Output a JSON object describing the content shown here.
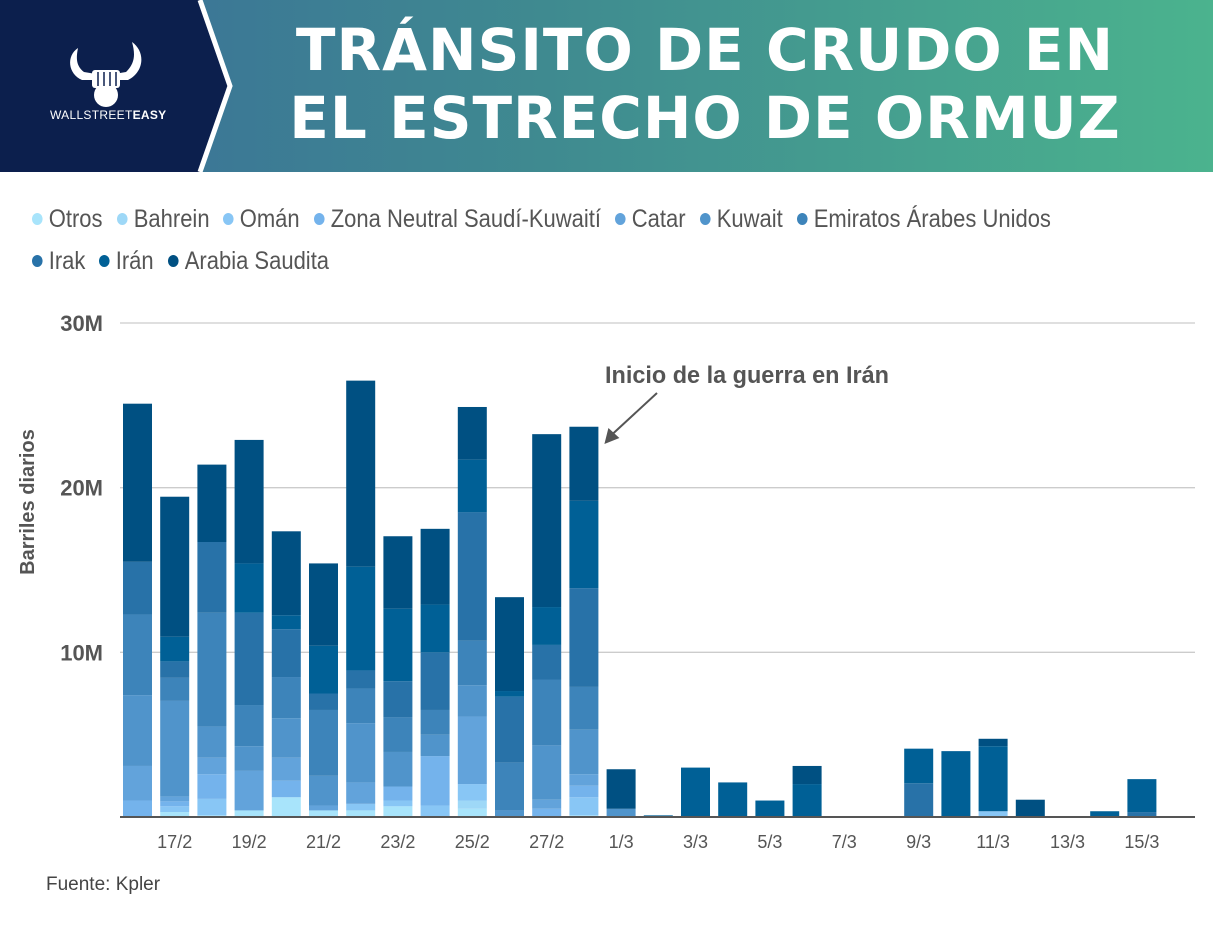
{
  "header": {
    "brand_light": "WALLSTREET",
    "brand_bold": "EASY",
    "title_line1": "TRÁNSITO DE CRUDO EN",
    "title_line2": "EL ESTRECHO DE ORMUZ",
    "logo_icon": "bull-fist-icon"
  },
  "source": "Fuente: Kpler",
  "chart_data": {
    "type": "bar",
    "stacked": true,
    "title": "TRÁNSITO DE CRUDO EN EL ESTRECHO DE ORMUZ",
    "xlabel": "",
    "ylabel": "Barriles diarios",
    "ylim": [
      0,
      30000000
    ],
    "yticks": [
      10000000,
      20000000,
      30000000
    ],
    "ytick_labels": [
      "10M",
      "20M",
      "30M"
    ],
    "grid": true,
    "legend_position": "top",
    "annotation": {
      "text": "Inicio de la guerra en Irán",
      "target_category": "28/2"
    },
    "categories": [
      "16/2",
      "17/2",
      "18/2",
      "19/2",
      "20/2",
      "21/2",
      "22/2",
      "23/2",
      "24/2",
      "25/2",
      "26/2",
      "27/2",
      "28/2",
      "1/3",
      "2/3",
      "3/3",
      "4/3",
      "5/3",
      "6/3",
      "7/3",
      "8/3",
      "9/3",
      "10/3",
      "11/3",
      "12/3",
      "13/3",
      "14/3",
      "15/3"
    ],
    "xtick_labels": [
      "17/2",
      "19/2",
      "21/2",
      "23/2",
      "25/2",
      "27/2",
      "1/3",
      "3/3",
      "5/3",
      "7/3",
      "9/3",
      "11/3",
      "13/3",
      "15/3"
    ],
    "units": "millones de barriles diarios",
    "series": [
      {
        "name": "Otros",
        "color": "#a8e4fb",
        "values": [
          0,
          0.3,
          0.1,
          0.4,
          1.2,
          0.4,
          0.4,
          0.65,
          0,
          0.5,
          0,
          0,
          0.1,
          0,
          0,
          0,
          0,
          0,
          0,
          0,
          0,
          0,
          0,
          0,
          0,
          0,
          0,
          0
        ]
      },
      {
        "name": "Bahrein",
        "color": "#9ed8f7",
        "values": [
          0,
          0,
          0,
          0,
          0,
          0,
          0,
          0,
          0,
          0.5,
          0,
          0,
          0,
          0,
          0,
          0,
          0,
          0,
          0,
          0,
          0,
          0,
          0,
          0,
          0,
          0,
          0,
          0
        ]
      },
      {
        "name": "Omán",
        "color": "#88c6f5",
        "values": [
          0,
          0.35,
          1.0,
          0,
          0,
          0,
          0.4,
          0.35,
          0.7,
          1.0,
          0,
          0,
          1.1,
          0,
          0,
          0,
          0,
          0,
          0,
          0,
          0,
          0,
          0,
          0.35,
          0,
          0,
          0,
          0
        ]
      },
      {
        "name": "Zona Neutral Saudí-Kuwaití",
        "color": "#74b3ec",
        "values": [
          1.0,
          0.3,
          1.5,
          0,
          1.0,
          0,
          0,
          0.85,
          3.0,
          0,
          0,
          0.5,
          0.7,
          0,
          0,
          0,
          0,
          0,
          0,
          0,
          0,
          0,
          0,
          0,
          0,
          0,
          0,
          0
        ]
      },
      {
        "name": "Catar",
        "color": "#62a3db",
        "values": [
          2.1,
          0.3,
          1.0,
          2.4,
          1.4,
          0.3,
          1.3,
          0,
          0,
          4.1,
          0,
          0.55,
          0.7,
          0,
          0,
          0,
          0,
          0,
          0,
          0,
          0,
          0,
          0,
          0,
          0,
          0,
          0,
          0
        ]
      },
      {
        "name": "Kuwait",
        "color": "#5094cb",
        "values": [
          4.3,
          5.8,
          1.9,
          1.5,
          2.4,
          1.8,
          3.6,
          2.1,
          1.3,
          1.9,
          0.4,
          3.3,
          2.7,
          0.5,
          0,
          0,
          0,
          0,
          0,
          0,
          0,
          0,
          0,
          0,
          0,
          0,
          0,
          0
        ]
      },
      {
        "name": "Emiratos Árabes Unidos",
        "color": "#3d84ba",
        "values": [
          4.9,
          1.4,
          6.9,
          2.5,
          2.5,
          4.0,
          2.1,
          2.1,
          1.5,
          2.7,
          2.9,
          4.0,
          2.6,
          0,
          0,
          0,
          0,
          0,
          0,
          0,
          0,
          0,
          0,
          0,
          0,
          0,
          0,
          0
        ]
      },
      {
        "name": "Irak",
        "color": "#2872a8",
        "values": [
          3.2,
          1.0,
          4.3,
          5.6,
          2.9,
          1.0,
          1.1,
          2.2,
          3.5,
          7.8,
          4.0,
          2.1,
          6.0,
          0,
          0,
          0,
          0,
          0,
          0,
          0,
          0,
          2.05,
          0,
          0,
          0,
          0,
          0,
          0.3
        ]
      },
      {
        "name": "Irán",
        "color": "#006096",
        "values": [
          0,
          1.5,
          0,
          3.0,
          0.85,
          2.9,
          6.3,
          4.4,
          2.9,
          3.2,
          0.35,
          2.3,
          5.3,
          0,
          0.1,
          3.0,
          2.1,
          1.0,
          2.0,
          0,
          0,
          2.1,
          4.0,
          3.95,
          0,
          0,
          0.35,
          2.0
        ]
      },
      {
        "name": "Arabia Saudita",
        "color": "#005082",
        "values": [
          9.6,
          8.5,
          4.7,
          7.5,
          5.1,
          5.0,
          11.3,
          4.4,
          4.6,
          3.2,
          5.7,
          10.5,
          4.5,
          2.4,
          0,
          0,
          0,
          0,
          1.1,
          0,
          0,
          0,
          0,
          0.45,
          1.05,
          0,
          0,
          0
        ]
      }
    ]
  }
}
